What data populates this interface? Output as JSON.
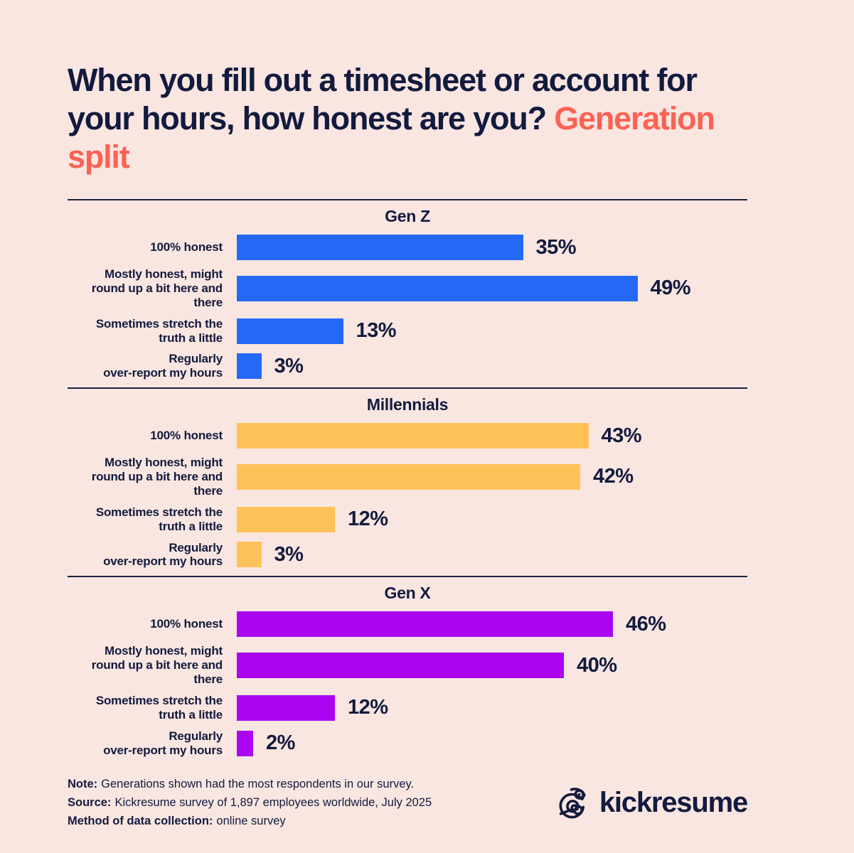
{
  "theme": {
    "background": "#f9e6e1",
    "text_navy": "#131a3e",
    "accent_coral": "#fb6254",
    "gen_z_blue": "#2469f6",
    "millennials_yellow": "#ffc25a",
    "gen_x_purple": "#ab04f0"
  },
  "title": {
    "main": "When you fill out a timesheet or account for your hours, how honest are you?",
    "accent": "Generation split"
  },
  "chart_data": [
    {
      "type": "bar",
      "orientation": "horizontal",
      "title": "Gen Z",
      "color": "#2469f6",
      "categories": [
        "100% honest",
        "Mostly honest, might\nround up a bit here and\nthere",
        "Sometimes stretch the\ntruth a little",
        "Regularly\nover-report my hours"
      ],
      "values": [
        35,
        49,
        13,
        3
      ],
      "value_labels": [
        "35%",
        "49%",
        "13%",
        "3%"
      ],
      "xlim": [
        0,
        60
      ],
      "grid": false,
      "value_label_position": "end-of-bar"
    },
    {
      "type": "bar",
      "orientation": "horizontal",
      "title": "Millennials",
      "color": "#ffc25a",
      "categories": [
        "100% honest",
        "Mostly honest, might\nround up a bit here and\nthere",
        "Sometimes stretch the\ntruth a little",
        "Regularly\nover-report my hours"
      ],
      "values": [
        43,
        42,
        12,
        3
      ],
      "value_labels": [
        "43%",
        "42%",
        "12%",
        "3%"
      ],
      "xlim": [
        0,
        60
      ],
      "grid": false,
      "value_label_position": "end-of-bar"
    },
    {
      "type": "bar",
      "orientation": "horizontal",
      "title": "Gen X",
      "color": "#ab04f0",
      "categories": [
        "100% honest",
        "Mostly honest, might\nround up a bit here and\nthere",
        "Sometimes stretch the\ntruth a little",
        "Regularly\nover-report my hours"
      ],
      "values": [
        46,
        40,
        12,
        2
      ],
      "value_labels": [
        "46%",
        "40%",
        "12%",
        "2%"
      ],
      "xlim": [
        0,
        60
      ],
      "grid": false,
      "value_label_position": "end-of-bar"
    }
  ],
  "footer": {
    "note_label": "Note:",
    "note_text": "Generations shown had the most respondents in our survey.",
    "source_label": "Source:",
    "source_text": "Kickresume survey of 1,897 employees worldwide, July 2025",
    "method_label": "Method of data collection:",
    "method_text": "online survey",
    "brand": "kickresume"
  }
}
